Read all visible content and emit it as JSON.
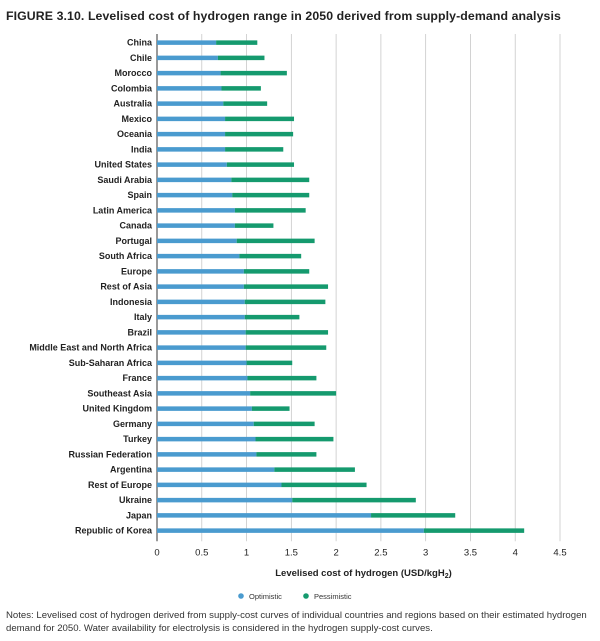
{
  "figure_title": "FIGURE 3.10. Levelised cost of hydrogen range in 2050 derived from supply-demand analysis",
  "notes": "Notes: Levelised cost of hydrogen derived from supply-cost curves of individual countries and regions based on their estimated hydrogen demand for 2050. Water availability for electrolysis is considered in the hydrogen supply-cost curves.",
  "colors": {
    "optimistic": "#4a9bcf",
    "pessimistic": "#159a6e",
    "grid": "#c8c8c8",
    "axis": "#333333"
  },
  "chart_data": {
    "type": "bar",
    "orientation": "horizontal",
    "stacked_range": true,
    "title": "FIGURE 3.10. Levelised cost of hydrogen range in 2050 derived from supply-demand analysis",
    "xlabel": "Levelised cost of hydrogen (USD/kgH",
    "xlabel_subscript": "2",
    "xlabel_suffix": ")",
    "ylabel": "",
    "xlim": [
      0,
      4.5
    ],
    "xticks": [
      "0",
      "0.5",
      "1",
      "1.5",
      "2",
      "2.5",
      "3",
      "3.5",
      "4",
      "4.5"
    ],
    "grid": true,
    "legend_position": "bottom",
    "categories": [
      "China",
      "Chile",
      "Morocco",
      "Colombia",
      "Australia",
      "Mexico",
      "Oceania",
      "India",
      "United States",
      "Saudi Arabia",
      "Spain",
      "Latin America",
      "Canada",
      "Portugal",
      "South Africa",
      "Europe",
      "Rest of Asia",
      "Indonesia",
      "Italy",
      "Brazil",
      "Middle East and North Africa",
      "Sub-Saharan Africa",
      "France",
      "Southeast Asia",
      "United Kingdom",
      "Germany",
      "Turkey",
      "Russian Federation",
      "Argentina",
      "Rest of Europe",
      "Ukraine",
      "Japan",
      "Republic of Korea"
    ],
    "series": [
      {
        "name": "Optimistic",
        "values": [
          0.66,
          0.68,
          0.71,
          0.72,
          0.74,
          0.76,
          0.76,
          0.76,
          0.78,
          0.83,
          0.84,
          0.87,
          0.87,
          0.89,
          0.92,
          0.97,
          0.97,
          0.98,
          0.98,
          0.99,
          0.99,
          1.0,
          1.01,
          1.04,
          1.06,
          1.08,
          1.1,
          1.11,
          1.31,
          1.39,
          1.51,
          2.39,
          2.98
        ]
      },
      {
        "name": "Pessimistic",
        "values": [
          1.12,
          1.2,
          1.45,
          1.16,
          1.23,
          1.53,
          1.52,
          1.41,
          1.53,
          1.7,
          1.7,
          1.66,
          1.3,
          1.76,
          1.61,
          1.7,
          1.91,
          1.88,
          1.59,
          1.91,
          1.89,
          1.51,
          1.78,
          2.0,
          1.48,
          1.76,
          1.97,
          1.78,
          2.21,
          2.34,
          2.89,
          3.33,
          4.1
        ]
      }
    ]
  }
}
